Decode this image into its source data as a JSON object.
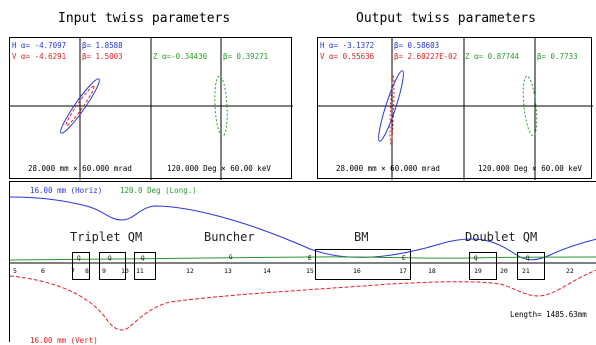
{
  "titles": {
    "input": "Input twiss parameters",
    "output": "Output twiss parameters"
  },
  "input_panel": {
    "h_alpha": "H α= -4.7097",
    "h_beta": "β= 1.8588",
    "v_alpha": "V α= -4.6291",
    "v_beta": "β= 1.5003",
    "z_alpha": "Z α=-0.34430",
    "z_beta": "β= 0.39271",
    "scale_transverse": "28.000 mm × 60.000 mrad",
    "scale_longitudinal": "120.000 Deg × 60.00 keV"
  },
  "output_panel": {
    "h_alpha": "H α= -3.1372",
    "h_beta": "β= 0.58603",
    "v_alpha": "V α= 0.55636",
    "v_beta": "β= 2.60227E-02",
    "z_alpha": "Z α= 0.87744",
    "z_beta": "β= 0.7733",
    "scale_transverse": "28.000 mm × 60.000 mrad",
    "scale_longitudinal": "120.000 Deg × 60.00 keV"
  },
  "beamline": {
    "horiz_label": "16.00 mm (Horiz)",
    "long_label": "120.0 Deg (Long.)",
    "vert_label": "16.00 mm (Vert)",
    "length_label": "Length= 1485.63mm",
    "sections": [
      "Triplet QM",
      "Buncher",
      "BM",
      "Doublet QM"
    ],
    "element_numbers": [
      "5",
      "6",
      "7",
      "8",
      "9",
      "10",
      "11",
      "12",
      "13",
      "14",
      "15",
      "16",
      "17",
      "18",
      "19",
      "20",
      "21",
      "22"
    ],
    "element_letters": {
      "q": "Q",
      "g": "G",
      "e": "E"
    }
  },
  "colors": {
    "horizontal": "#2a35d8",
    "vertical": "#e02020",
    "longitudinal": "#2a9a2a"
  }
}
